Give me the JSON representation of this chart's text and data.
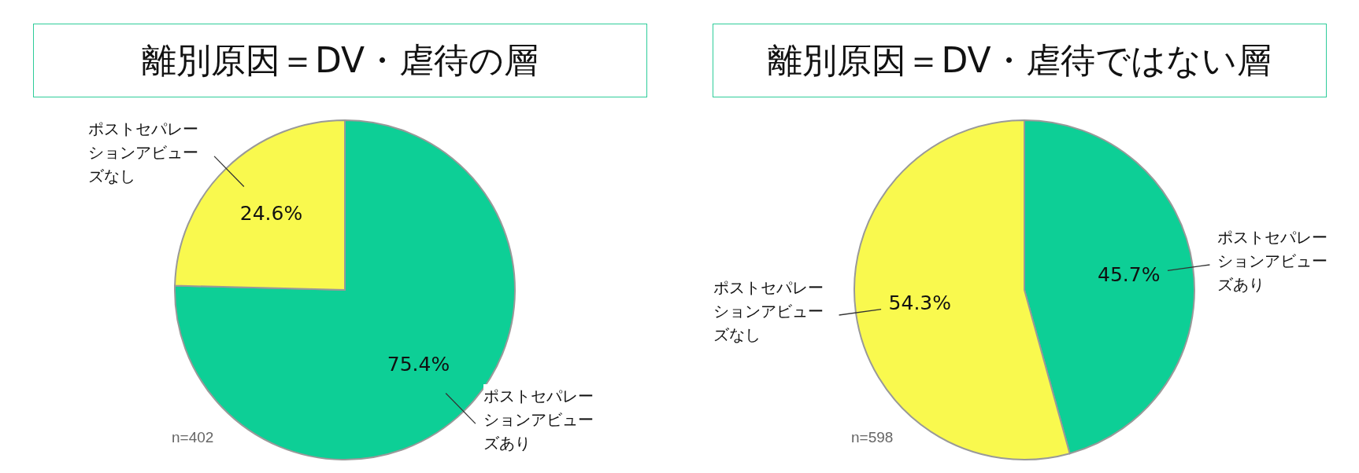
{
  "chart_data": [
    {
      "type": "pie",
      "title": "離別原因＝DV・虐待の層",
      "categories": [
        "ポストセパレーションアビューズあり",
        "ポストセパレーションアビューズなし"
      ],
      "values": [
        75.4,
        24.6
      ],
      "colors": [
        "#0dcf96",
        "#f9f94e"
      ],
      "value_labels": [
        "75.4%",
        "24.6%"
      ],
      "annotations": [
        "n=402"
      ]
    },
    {
      "type": "pie",
      "title": "離別原因＝DV・虐待ではない層",
      "categories": [
        "ポストセパレーションアビューズあり",
        "ポストセパレーションアビューズなし"
      ],
      "values": [
        45.7,
        54.3
      ],
      "colors": [
        "#0dcf96",
        "#f9f94e"
      ],
      "value_labels": [
        "45.7%",
        "54.3%"
      ],
      "annotations": [
        "n=598"
      ]
    }
  ]
}
